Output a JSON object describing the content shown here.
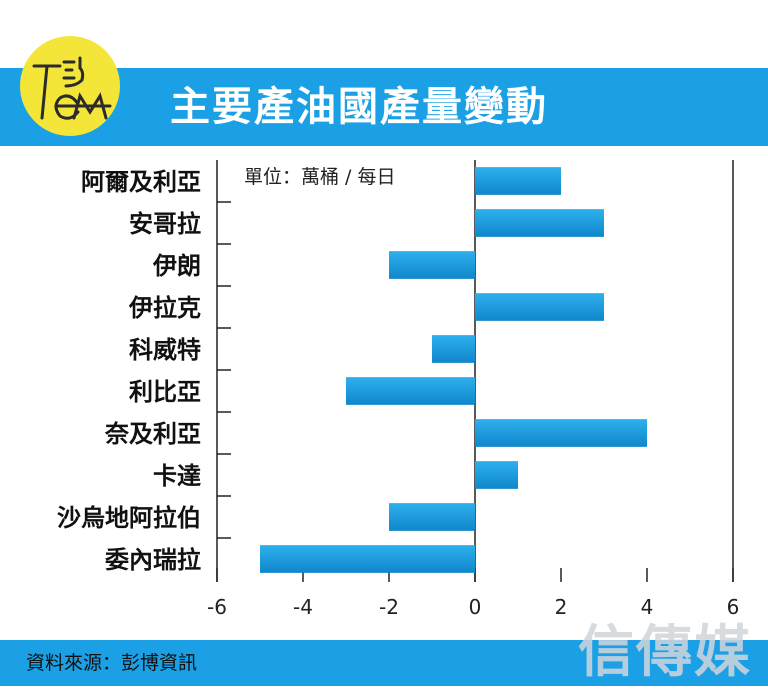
{
  "header": {
    "title": "主要產油國產量變動"
  },
  "logo": {
    "icon": "tcm-logo-icon",
    "color": "#f4e639",
    "stroke": "#2b2b2b"
  },
  "footer": {
    "source": "資料來源：彭博資訊",
    "watermark": "信傳媒"
  },
  "colors": {
    "band": "#1ba0e6",
    "bar_light": "#2aa8e8",
    "bar_dark": "#0f84c8"
  },
  "chart_data": {
    "type": "bar",
    "orientation": "horizontal",
    "unit_label": "單位：萬桶 / 每日",
    "categories": [
      "阿爾及利亞",
      "安哥拉",
      "伊朗",
      "伊拉克",
      "科威特",
      "利比亞",
      "奈及利亞",
      "卡達",
      "沙烏地阿拉伯",
      "委內瑞拉"
    ],
    "values": [
      2.0,
      3.0,
      -2.0,
      3.0,
      -1.0,
      -3.0,
      4.0,
      1.0,
      -2.0,
      -5.0
    ],
    "xlim": [
      -6,
      6
    ],
    "xticks": [
      -6,
      -4,
      -2,
      0,
      2,
      4,
      6
    ],
    "grid": false
  }
}
